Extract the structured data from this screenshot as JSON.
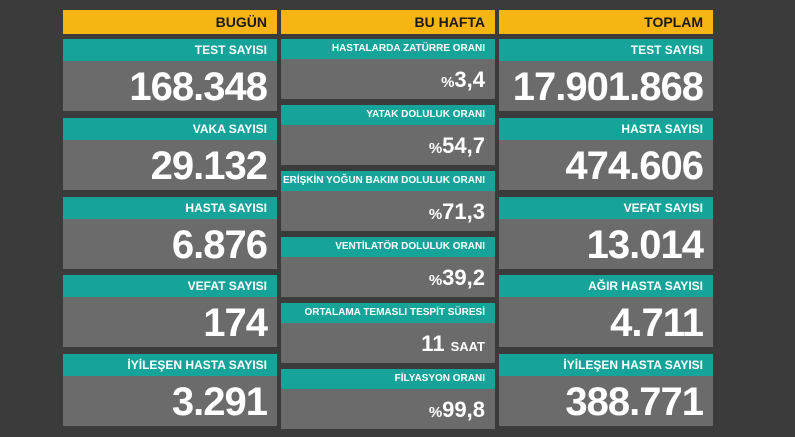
{
  "columns": [
    {
      "header": "BUGÜN",
      "cards": [
        {
          "label": "TEST SAYISI",
          "value": "168.348"
        },
        {
          "label": "VAKA SAYISI",
          "value": "29.132"
        },
        {
          "label": "HASTA SAYISI",
          "value": "6.876"
        },
        {
          "label": "VEFAT SAYISI",
          "value": "174"
        },
        {
          "label": "İYİLEŞEN HASTA SAYISI",
          "value": "3.291"
        }
      ]
    },
    {
      "header": "BU HAFTA",
      "cards": [
        {
          "label": "HASTALARDA ZATÜRRE ORANI",
          "prefix": "%",
          "value": "3,4"
        },
        {
          "label": "YATAK DOLULUK ORANI",
          "prefix": "%",
          "value": "54,7"
        },
        {
          "label": "ERİŞKİN YOĞUN BAKIM DOLULUK ORANI",
          "prefix": "%",
          "value": "71,3"
        },
        {
          "label": "VENTİLATÖR DOLULUK ORANI",
          "prefix": "%",
          "value": "39,2"
        },
        {
          "label": "ORTALAMA TEMASLI TESPİT SÜRESİ",
          "value": "11",
          "suffix": "SAAT"
        },
        {
          "label": "FİLYASYON ORANI",
          "prefix": "%",
          "value": "99,8"
        }
      ]
    },
    {
      "header": "TOPLAM",
      "cards": [
        {
          "label": "TEST SAYISI",
          "value": "17.901.868"
        },
        {
          "label": "HASTA SAYISI",
          "value": "474.606"
        },
        {
          "label": "VEFAT SAYISI",
          "value": "13.014"
        },
        {
          "label": "AĞIR HASTA SAYISI",
          "value": "4.711"
        },
        {
          "label": "İYİLEŞEN HASTA SAYISI",
          "value": "388.771"
        }
      ]
    }
  ]
}
